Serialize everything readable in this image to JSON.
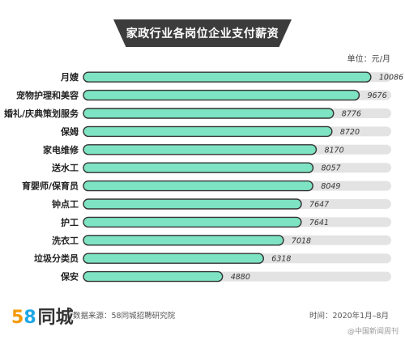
{
  "header": {
    "title": "家政行业各岗位企业支付薪资",
    "unit": "单位：元/月"
  },
  "chart_data": {
    "type": "bar",
    "orientation": "horizontal",
    "title": "家政行业各岗位企业支付薪资",
    "categories": [
      "月嫂",
      "宠物护理和美容",
      "婚礼/庆典策划服务",
      "保姆",
      "家电维修",
      "送水工",
      "育婴师/保育员",
      "钟点工",
      "护工",
      "洗衣工",
      "垃圾分类员",
      "保安"
    ],
    "values": [
      10086,
      9676,
      8776,
      8720,
      8170,
      8057,
      8049,
      7647,
      7641,
      7018,
      6318,
      4880
    ],
    "value_labels": [
      "10086",
      "9676",
      "8776",
      "8720",
      "8170",
      "8057",
      "8049",
      "7647",
      "7641",
      "7018",
      "6318",
      "4880"
    ],
    "xlim": [
      0,
      10800
    ],
    "colors": {
      "bar": "#7ee3c2",
      "track": "#e3e3e3",
      "bar_stroke": "#333333"
    },
    "grid": false,
    "legend": "none"
  },
  "footer": {
    "logo_5": "5",
    "logo_8": "8",
    "logo_text": "同城",
    "source": "数据来源：58同城招聘研究院",
    "time": "时间：2020年1月–8月",
    "watermark": "@中国新闻周刊"
  }
}
